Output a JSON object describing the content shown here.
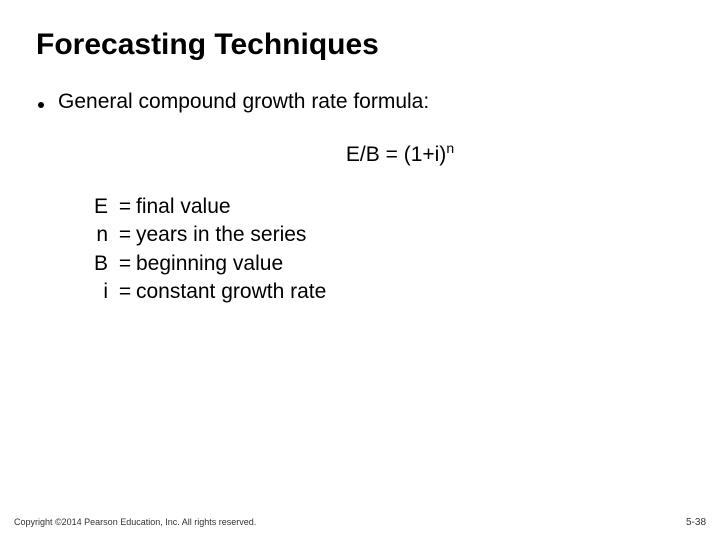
{
  "title": "Forecasting Techniques",
  "bullet": "General compound growth rate formula:",
  "formula": {
    "lhs": "E/B",
    "eq": "=",
    "rhs_open": "(1+i)",
    "exp": "n"
  },
  "definitions": [
    {
      "sym": "E",
      "eq": "=",
      "val": "final value"
    },
    {
      "sym": "n",
      "eq": "=",
      "val": "years in the series"
    },
    {
      "sym": "B",
      "eq": "=",
      "val": "beginning value"
    },
    {
      "sym": "i",
      "eq": "=",
      "val": "constant growth rate"
    }
  ],
  "footer": {
    "copyright": "Copyright ©2014 Pearson Education, Inc. All rights reserved.",
    "page": "5-38"
  },
  "colors": {
    "background": "#ffffff",
    "text": "#000000",
    "footer_text": "#333333"
  },
  "typography": {
    "font_family": "Verdana",
    "title_fontsize_pt": 30,
    "body_fontsize_pt": 21,
    "footer_fontsize_pt": 9
  }
}
